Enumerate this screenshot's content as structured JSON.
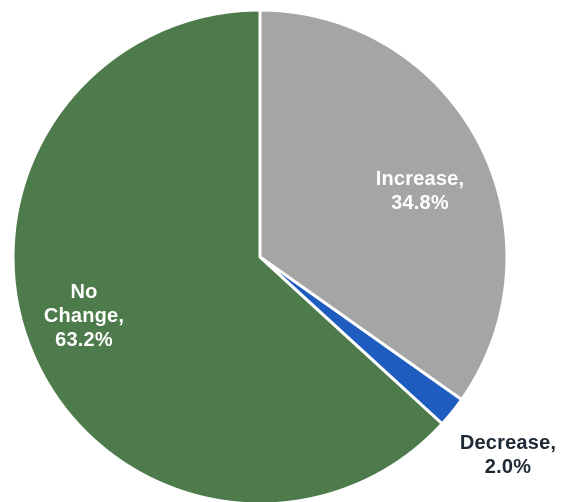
{
  "chart_data": {
    "type": "pie",
    "slices": [
      {
        "category": "Increase",
        "value": 34.8,
        "label_lines": [
          "Increase,",
          "34.8%"
        ],
        "color": "#a5a5a5",
        "label_color": "#ffffff"
      },
      {
        "category": "Decrease",
        "value": 2.0,
        "label_lines": [
          "Decrease,",
          "2.0%"
        ],
        "color": "#1f5cbf",
        "label_color": "#1f2a36"
      },
      {
        "category": "No Change",
        "value": 63.2,
        "label_lines": [
          "No",
          "Change,",
          "63.2%"
        ],
        "color": "#4e7b4b",
        "label_color": "#ffffff"
      }
    ],
    "start_angle_deg": 0,
    "direction": "clockwise",
    "slice_border_color": "#ffffff",
    "legend": "none"
  }
}
